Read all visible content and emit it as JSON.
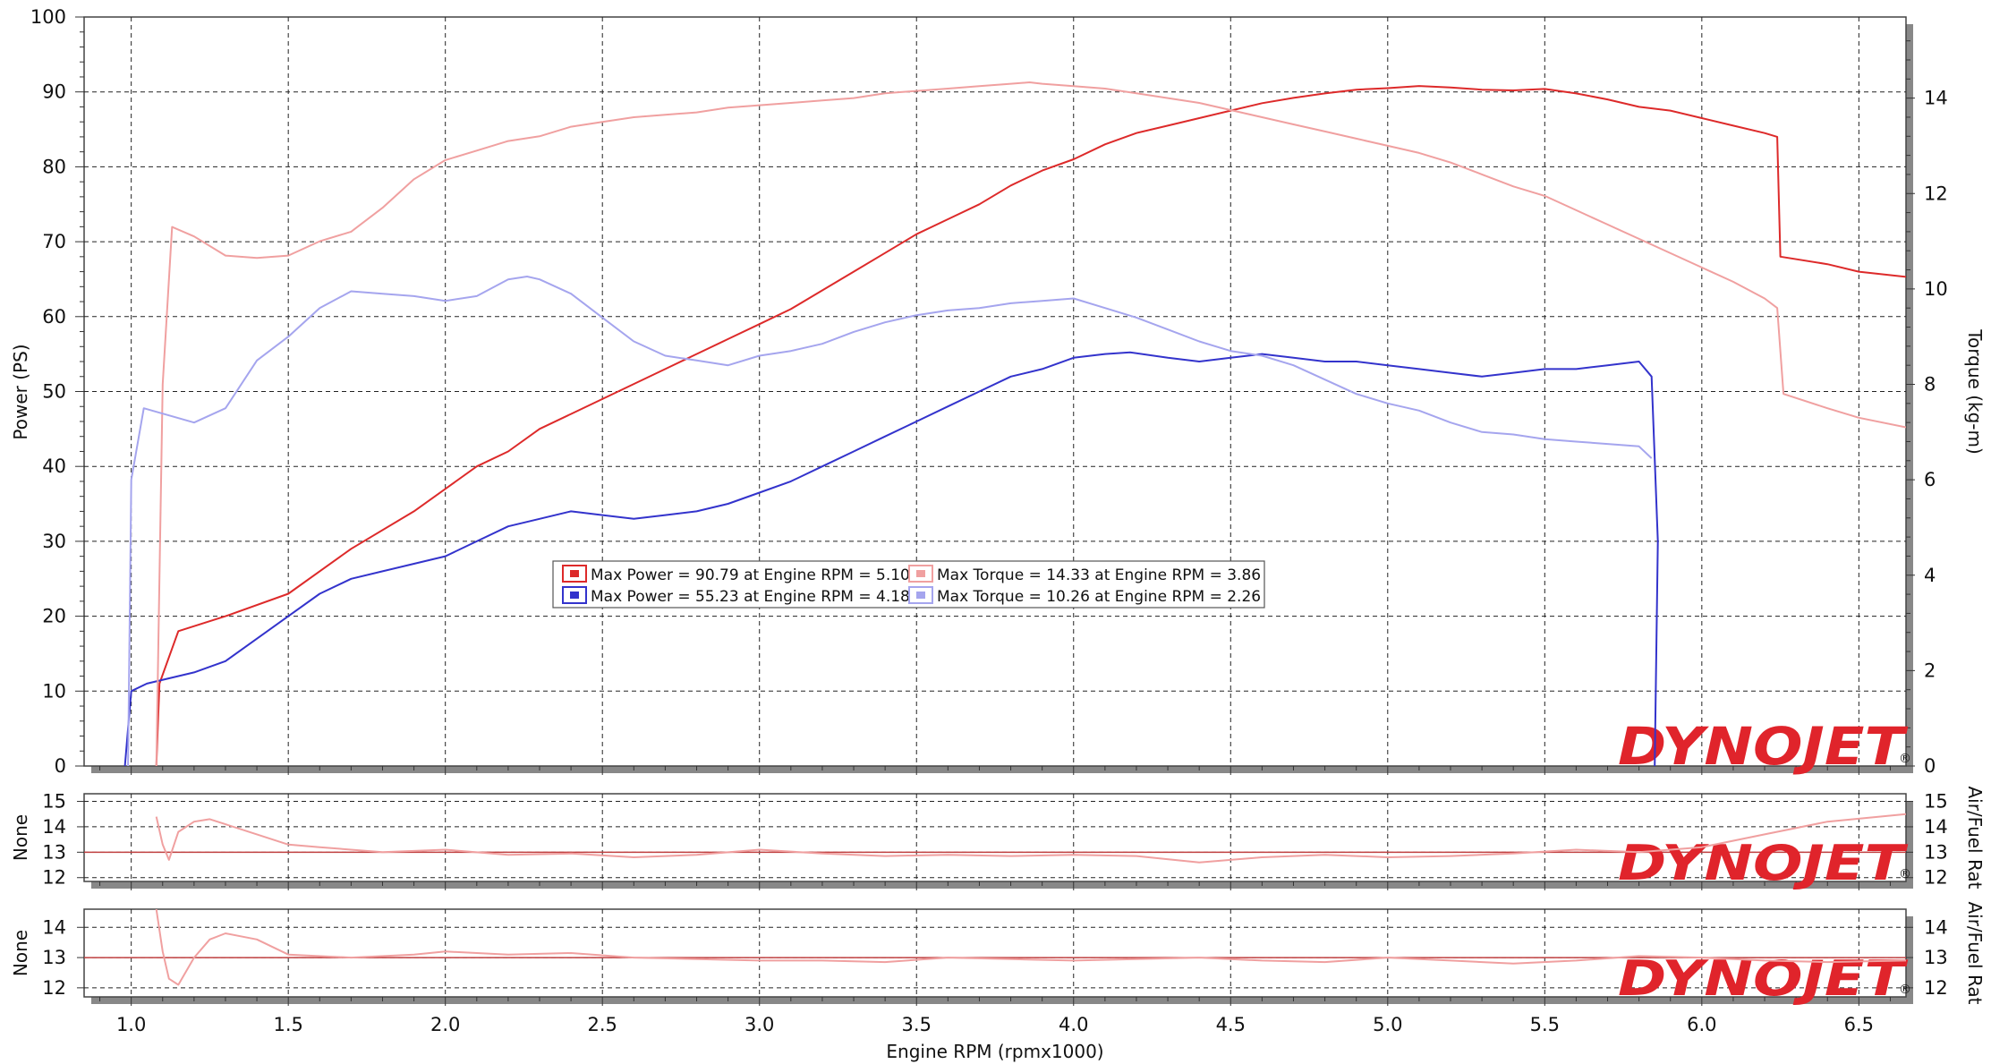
{
  "chart_data": [
    {
      "type": "line",
      "panel": "power-torque",
      "xlabel": "Engine RPM (rpmx1000)",
      "ylabel": "Power (PS)",
      "y2label": "Torque (kg-m)",
      "xlim": [
        0.85,
        6.65
      ],
      "ylim": [
        0,
        100
      ],
      "y2lim": [
        0,
        15.7
      ],
      "x_ticks": [
        "1.0",
        "1.5",
        "2.0",
        "2.5",
        "3.0",
        "3.5",
        "4.0",
        "4.5",
        "5.0",
        "5.5",
        "6.0",
        "6.5"
      ],
      "y_ticks": [
        "0",
        "10",
        "20",
        "30",
        "40",
        "50",
        "60",
        "70",
        "80",
        "90",
        "100"
      ],
      "y2_ticks": [
        "0",
        "2",
        "4",
        "6",
        "8",
        "10",
        "12",
        "14"
      ],
      "grid": true,
      "legend_position": "center",
      "legend": [
        "Max Power = 90.79 at Engine RPM = 5.10",
        "Max Power = 55.23 at Engine RPM = 4.18",
        "Max Torque = 14.33 at Engine RPM = 3.86",
        "Max Torque = 10.26 at Engine RPM = 2.26"
      ],
      "series": [
        {
          "axis": "left",
          "color": "#dd2a2a",
          "x": [
            1.08,
            1.09,
            1.15,
            1.3,
            1.5,
            1.7,
            1.9,
            2.0,
            2.1,
            2.2,
            2.3,
            2.4,
            2.5,
            2.6,
            2.7,
            2.8,
            2.9,
            3.0,
            3.1,
            3.2,
            3.3,
            3.4,
            3.5,
            3.6,
            3.7,
            3.8,
            3.9,
            4.0,
            4.1,
            4.2,
            4.3,
            4.4,
            4.5,
            4.6,
            4.7,
            4.8,
            4.9,
            5.0,
            5.1,
            5.2,
            5.3,
            5.4,
            5.5,
            5.6,
            5.7,
            5.8,
            5.9,
            6.0,
            6.1,
            6.2,
            6.24,
            6.25,
            6.4,
            6.5,
            6.65
          ],
          "y": [
            0,
            11,
            18,
            20,
            23,
            29,
            34,
            37,
            40,
            42,
            45,
            47,
            49,
            51,
            53,
            55,
            57,
            59,
            61,
            63.5,
            66,
            68.5,
            71,
            73,
            75,
            77.5,
            79.5,
            81,
            83,
            84.5,
            85.5,
            86.5,
            87.5,
            88.5,
            89.2,
            89.8,
            90.3,
            90.5,
            90.79,
            90.6,
            90.3,
            90.2,
            90.4,
            89.8,
            89,
            88,
            87.5,
            86.5,
            85.5,
            84.5,
            84,
            68,
            67,
            66,
            65.3
          ]
        },
        {
          "axis": "left",
          "color": "#3333cc",
          "x": [
            0.98,
            0.99,
            1.0,
            1.05,
            1.2,
            1.3,
            1.4,
            1.5,
            1.6,
            1.7,
            1.8,
            1.9,
            2.0,
            2.1,
            2.2,
            2.3,
            2.4,
            2.5,
            2.6,
            2.7,
            2.8,
            2.9,
            3.0,
            3.1,
            3.2,
            3.3,
            3.4,
            3.5,
            3.6,
            3.7,
            3.8,
            3.9,
            4.0,
            4.1,
            4.18,
            4.3,
            4.4,
            4.5,
            4.6,
            4.7,
            4.8,
            4.9,
            5.0,
            5.1,
            5.2,
            5.3,
            5.4,
            5.5,
            5.6,
            5.7,
            5.8,
            5.84,
            5.86,
            5.85
          ],
          "y": [
            0,
            5,
            10,
            11,
            12.5,
            14,
            17,
            20,
            23,
            25,
            26,
            27,
            28,
            30,
            32,
            33,
            34,
            33.5,
            33,
            33.5,
            34,
            35,
            36.5,
            38,
            40,
            42,
            44,
            46,
            48,
            50,
            52,
            53,
            54.5,
            55,
            55.23,
            54.5,
            54,
            54.5,
            55,
            54.5,
            54,
            54,
            53.5,
            53,
            52.5,
            52,
            52.5,
            53,
            53,
            53.5,
            54,
            52,
            30,
            0
          ]
        },
        {
          "axis": "right",
          "color": "#f0a0a0",
          "x": [
            1.08,
            1.1,
            1.13,
            1.2,
            1.3,
            1.4,
            1.5,
            1.6,
            1.7,
            1.8,
            1.9,
            2.0,
            2.1,
            2.2,
            2.3,
            2.4,
            2.5,
            2.6,
            2.7,
            2.8,
            2.9,
            3.0,
            3.1,
            3.2,
            3.3,
            3.4,
            3.5,
            3.6,
            3.7,
            3.8,
            3.86,
            3.9,
            4.0,
            4.1,
            4.2,
            4.3,
            4.4,
            4.5,
            4.6,
            4.7,
            4.8,
            4.9,
            5.0,
            5.1,
            5.2,
            5.3,
            5.4,
            5.5,
            5.6,
            5.7,
            5.8,
            5.9,
            6.0,
            6.1,
            6.2,
            6.24,
            6.26,
            6.4,
            6.5,
            6.65
          ],
          "y": [
            0,
            8,
            11.3,
            11.1,
            10.7,
            10.65,
            10.7,
            11,
            11.2,
            11.7,
            12.3,
            12.7,
            12.9,
            13.1,
            13.2,
            13.4,
            13.5,
            13.6,
            13.65,
            13.7,
            13.8,
            13.85,
            13.9,
            13.95,
            14,
            14.1,
            14.15,
            14.2,
            14.25,
            14.3,
            14.33,
            14.3,
            14.25,
            14.2,
            14.1,
            14,
            13.9,
            13.75,
            13.6,
            13.45,
            13.3,
            13.15,
            13,
            12.85,
            12.65,
            12.4,
            12.15,
            11.95,
            11.65,
            11.35,
            11.05,
            10.75,
            10.45,
            10.15,
            9.8,
            9.6,
            7.8,
            7.5,
            7.3,
            7.1
          ]
        },
        {
          "axis": "right",
          "color": "#a5a5ee",
          "x": [
            0.99,
            1.0,
            1.04,
            1.2,
            1.3,
            1.4,
            1.5,
            1.6,
            1.7,
            1.8,
            1.9,
            2.0,
            2.1,
            2.2,
            2.26,
            2.3,
            2.4,
            2.5,
            2.6,
            2.7,
            2.8,
            2.9,
            3.0,
            3.1,
            3.2,
            3.3,
            3.4,
            3.5,
            3.6,
            3.7,
            3.8,
            3.9,
            4.0,
            4.1,
            4.2,
            4.3,
            4.4,
            4.5,
            4.6,
            4.7,
            4.8,
            4.9,
            5.0,
            5.1,
            5.2,
            5.3,
            5.4,
            5.5,
            5.6,
            5.7,
            5.8,
            5.84
          ],
          "y": [
            0,
            6,
            7.5,
            7.2,
            7.5,
            8.5,
            9,
            9.6,
            9.95,
            9.9,
            9.85,
            9.75,
            9.85,
            10.2,
            10.26,
            10.2,
            9.9,
            9.4,
            8.9,
            8.6,
            8.5,
            8.4,
            8.6,
            8.7,
            8.85,
            9.1,
            9.3,
            9.45,
            9.55,
            9.6,
            9.7,
            9.75,
            9.8,
            9.6,
            9.4,
            9.15,
            8.9,
            8.7,
            8.6,
            8.4,
            8.1,
            7.8,
            7.6,
            7.45,
            7.2,
            7,
            6.95,
            6.85,
            6.8,
            6.75,
            6.7,
            6.45
          ]
        }
      ]
    },
    {
      "type": "line",
      "panel": "afr-1",
      "ylabel": "None",
      "y2label": "Air/Fuel Rat",
      "ylim": [
        11.85,
        15.3
      ],
      "y_ticks": [
        "12",
        "13",
        "14",
        "15"
      ],
      "reference_line": 13,
      "series": [
        {
          "color": "#f0a0a0",
          "x": [
            1.08,
            1.1,
            1.12,
            1.15,
            1.2,
            1.25,
            1.3,
            1.4,
            1.5,
            1.6,
            1.8,
            2.0,
            2.2,
            2.4,
            2.6,
            2.8,
            3.0,
            3.2,
            3.4,
            3.6,
            3.8,
            4.0,
            4.2,
            4.4,
            4.6,
            4.8,
            5.0,
            5.2,
            5.4,
            5.6,
            5.8,
            6.0,
            6.2,
            6.4,
            6.65
          ],
          "y": [
            14.4,
            13.3,
            12.7,
            13.8,
            14.2,
            14.3,
            14.1,
            13.7,
            13.3,
            13.2,
            13.0,
            13.1,
            12.9,
            12.95,
            12.8,
            12.9,
            13.1,
            12.95,
            12.85,
            12.9,
            12.85,
            12.9,
            12.85,
            12.6,
            12.8,
            12.9,
            12.8,
            12.85,
            12.95,
            13.1,
            13.0,
            13.2,
            13.7,
            14.2,
            14.5
          ]
        }
      ]
    },
    {
      "type": "line",
      "panel": "afr-2",
      "ylabel": "None",
      "y2label": "Air/Fuel Rat",
      "ylim": [
        11.7,
        14.6
      ],
      "y_ticks": [
        "12",
        "13",
        "14"
      ],
      "reference_line": 13,
      "series": [
        {
          "color": "#f0a0a0",
          "x": [
            1.08,
            1.1,
            1.12,
            1.15,
            1.2,
            1.25,
            1.3,
            1.4,
            1.5,
            1.7,
            1.9,
            2.0,
            2.2,
            2.4,
            2.6,
            2.8,
            3.0,
            3.2,
            3.4,
            3.6,
            3.8,
            4.0,
            4.2,
            4.4,
            4.6,
            4.8,
            5.0,
            5.2,
            5.4,
            5.6,
            5.8,
            6.0,
            6.2,
            6.4,
            6.65
          ],
          "y": [
            14.6,
            13.2,
            12.3,
            12.1,
            13.0,
            13.6,
            13.8,
            13.6,
            13.1,
            13.0,
            13.1,
            13.2,
            13.1,
            13.15,
            13.0,
            12.95,
            12.9,
            12.9,
            12.85,
            13.0,
            12.95,
            12.9,
            12.95,
            13.0,
            12.9,
            12.85,
            13.0,
            12.9,
            12.8,
            12.9,
            13.05,
            13.0,
            12.9,
            12.85,
            12.9
          ]
        }
      ]
    }
  ],
  "logo": {
    "text": "DYNOJET",
    "registered": "®",
    "color_main": "#e0242b",
    "color_accent": "#111111"
  }
}
